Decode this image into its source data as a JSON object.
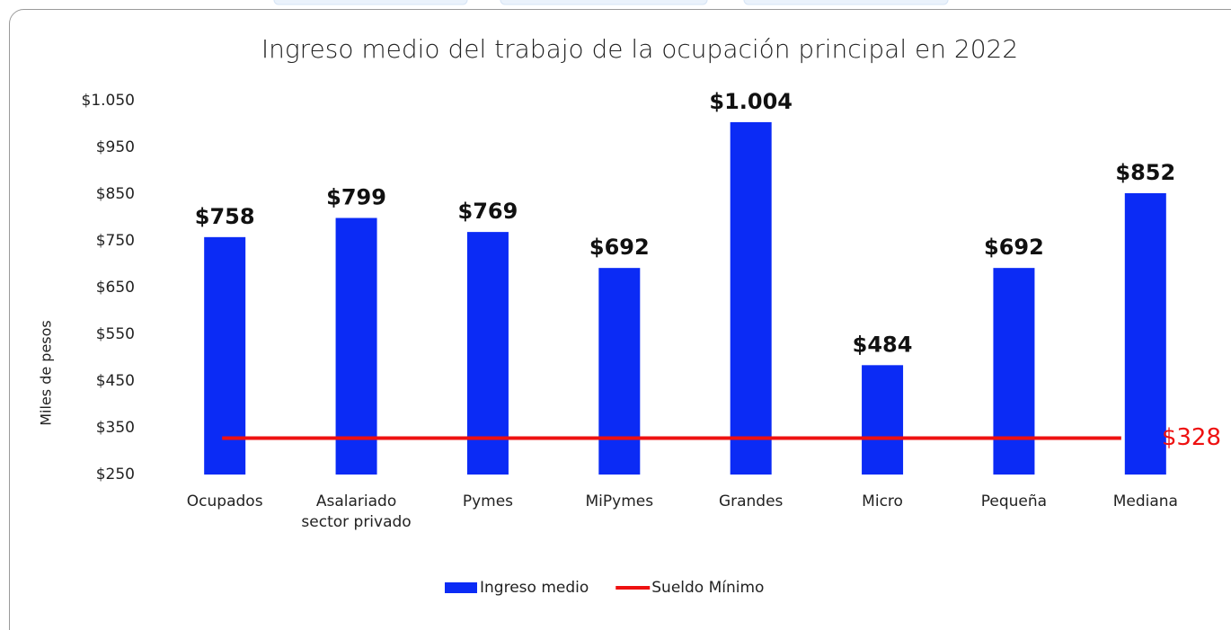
{
  "chart_data": {
    "type": "bar",
    "title": "Ingreso medio del trabajo de la ocupación principal en 2022",
    "y_label": "Miles de pesos",
    "categories": [
      "Ocupados",
      "Asalariado sector privado",
      "Pymes",
      "MiPymes",
      "Grandes",
      "Micro",
      "Pequeña",
      "Mediana"
    ],
    "series": [
      {
        "name": "Ingreso medio",
        "color": "#0b2bf5",
        "values": [
          758,
          799,
          769,
          692,
          1004,
          484,
          692,
          852
        ],
        "value_labels": [
          "$758",
          "$799",
          "$769",
          "$692",
          "$1.004",
          "$484",
          "$692",
          "$852"
        ]
      }
    ],
    "reference_lines": [
      {
        "name": "Sueldo Mínimo",
        "value": 328,
        "label": "$328",
        "color": "#ee1111"
      }
    ],
    "ylim": [
      250,
      1050
    ],
    "yticks": [
      {
        "value": 250,
        "label": "$250"
      },
      {
        "value": 350,
        "label": "$350"
      },
      {
        "value": 450,
        "label": "$450"
      },
      {
        "value": 550,
        "label": "$550"
      },
      {
        "value": 650,
        "label": "$650"
      },
      {
        "value": 750,
        "label": "$750"
      },
      {
        "value": 850,
        "label": "$850"
      },
      {
        "value": 950,
        "label": "$950"
      },
      {
        "value": 1050,
        "label": "$1.050"
      }
    ],
    "grid": false,
    "legend": "bottom"
  }
}
